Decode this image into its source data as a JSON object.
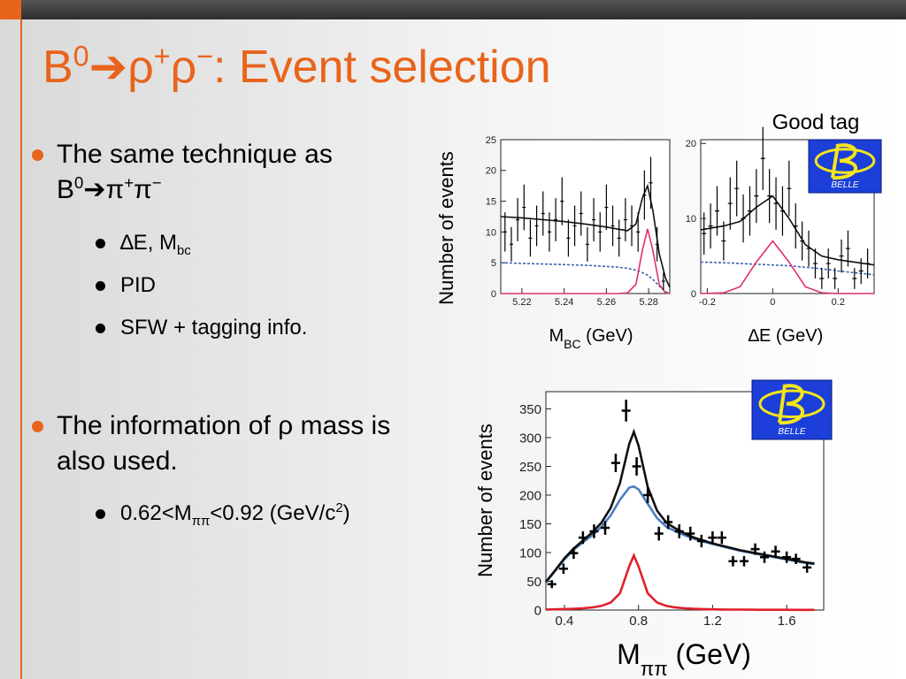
{
  "title": [
    {
      "text": "B"
    },
    {
      "text": "0",
      "sup": true
    },
    {
      "text": "➔ρ"
    },
    {
      "text": "+",
      "sup": true
    },
    {
      "text": "ρ"
    },
    {
      "text": "−",
      "sup": true
    },
    {
      "text": ": Event selection"
    }
  ],
  "bullets": [
    {
      "text": [
        {
          "text": "The same technique as B"
        },
        {
          "text": "0",
          "sup": true
        },
        {
          "text": "➔π"
        },
        {
          "text": "+",
          "sup": true
        },
        {
          "text": "π"
        },
        {
          "text": "−",
          "sup": true
        }
      ],
      "sub": [
        [
          {
            "text": "∆E, M"
          },
          {
            "text": "bc",
            "sub": true
          }
        ],
        [
          {
            "text": "PID"
          }
        ],
        [
          {
            "text": "SFW + tagging info."
          }
        ]
      ]
    },
    {
      "text": [
        {
          "text": "The information of ρ mass is also used."
        }
      ],
      "sub": [
        [
          {
            "text": "0.62<M"
          },
          {
            "text": "ππ",
            "sub": true
          },
          {
            "text": "<0.92 (GeV/c"
          },
          {
            "text": "2",
            "sup": true
          },
          {
            "text": ")"
          }
        ]
      ]
    }
  ],
  "plots": [
    {
      "type": "scatter",
      "ylabel": "Number of events",
      "xlabel": [
        {
          "text": "M"
        },
        {
          "text": "BC",
          "sub": true
        },
        {
          "text": " (GeV)"
        }
      ],
      "xlim": [
        5.21,
        5.29
      ],
      "xticks": [
        5.22,
        5.24,
        5.26,
        5.28
      ],
      "ylim": [
        0,
        25
      ],
      "yticks": [
        0,
        5,
        10,
        15,
        20,
        25
      ],
      "points": {
        "x": [
          5.212,
          5.215,
          5.218,
          5.221,
          5.224,
          5.227,
          5.23,
          5.233,
          5.236,
          5.239,
          5.242,
          5.245,
          5.248,
          5.251,
          5.254,
          5.257,
          5.26,
          5.263,
          5.266,
          5.269,
          5.272,
          5.275,
          5.278,
          5.281,
          5.284,
          5.287
        ],
        "y": [
          10,
          8,
          12,
          14,
          9,
          11,
          13,
          10,
          12,
          15,
          9,
          11,
          13,
          8,
          12,
          10,
          14,
          11,
          9,
          12,
          11,
          10,
          16,
          18,
          8,
          2
        ],
        "errors": [
          3.2,
          2.8,
          3.5,
          3.7,
          3.0,
          3.3,
          3.6,
          3.2,
          3.5,
          3.9,
          3.0,
          3.3,
          3.6,
          2.8,
          3.5,
          3.2,
          3.7,
          3.3,
          3.0,
          3.5,
          3.3,
          3.2,
          4.0,
          4.2,
          2.8,
          1.4
        ]
      },
      "curve_x": [
        5.21,
        5.22,
        5.23,
        5.24,
        5.25,
        5.26,
        5.265,
        5.27,
        5.274,
        5.277,
        5.2795,
        5.282,
        5.285,
        5.288,
        5.29
      ],
      "curves": [
        {
          "color": "#3a66b0",
          "dash": true,
          "values": [
            5.0,
            4.9,
            4.8,
            4.7,
            4.6,
            4.4,
            4.3,
            4.1,
            3.8,
            3.4,
            3.0,
            2.3,
            1.2,
            0.3,
            0
          ]
        },
        {
          "color": "#e0306a",
          "dash": false,
          "values": [
            0,
            0,
            0,
            0,
            0,
            0,
            0,
            0.1,
            1.5,
            7.0,
            10.5,
            7.0,
            1.5,
            0.1,
            0
          ]
        },
        {
          "color": "#111111",
          "dash": false,
          "values": [
            12.5,
            12.3,
            12.0,
            11.7,
            11.3,
            10.8,
            10.5,
            10.2,
            11.3,
            15.5,
            17.5,
            13.5,
            6.5,
            2.5,
            1.0
          ]
        }
      ]
    },
    {
      "type": "scatter",
      "xlabel": [
        {
          "text": "∆E (GeV)"
        }
      ],
      "annotation": "Good tag",
      "logo": "BELLE",
      "xlim": [
        -0.22,
        0.31
      ],
      "xticks": [
        -0.2,
        0,
        0.2
      ],
      "ylim": [
        0,
        20.5
      ],
      "yticks": [
        0,
        10,
        20
      ],
      "points": {
        "x": [
          -0.21,
          -0.19,
          -0.17,
          -0.15,
          -0.13,
          -0.11,
          -0.09,
          -0.07,
          -0.05,
          -0.03,
          -0.01,
          0.01,
          0.03,
          0.05,
          0.07,
          0.09,
          0.11,
          0.13,
          0.15,
          0.17,
          0.19,
          0.21,
          0.23,
          0.25,
          0.27,
          0.29
        ],
        "y": [
          8,
          9,
          11,
          7,
          12,
          14,
          10,
          11,
          13,
          18,
          13,
          12,
          11,
          14,
          9,
          7,
          6,
          4,
          2,
          4,
          2,
          5,
          6,
          2,
          3,
          4
        ],
        "errors": [
          2.8,
          3.0,
          3.3,
          2.6,
          3.5,
          3.7,
          3.2,
          3.3,
          3.6,
          4.2,
          3.6,
          3.5,
          3.3,
          3.7,
          3.0,
          2.6,
          2.4,
          2.0,
          1.4,
          2.0,
          1.4,
          2.2,
          2.4,
          1.4,
          1.7,
          2.0
        ]
      },
      "curve_x": [
        -0.22,
        -0.15,
        -0.1,
        -0.05,
        0,
        0.05,
        0.1,
        0.15,
        0.2,
        0.31
      ],
      "curves": [
        {
          "color": "#3a66b0",
          "dash": true,
          "values": [
            4.2,
            4.1,
            4.0,
            3.9,
            3.8,
            3.7,
            3.5,
            3.3,
            3.0,
            2.5
          ]
        },
        {
          "color": "#e0306a",
          "dash": false,
          "values": [
            0,
            0.1,
            0.9,
            4.2,
            7,
            4.2,
            0.9,
            0.1,
            0,
            0
          ]
        },
        {
          "color": "#111111",
          "dash": false,
          "values": [
            8.5,
            9.0,
            9.6,
            11.5,
            13.0,
            10.0,
            6.5,
            5.0,
            4.5,
            3.8
          ]
        }
      ]
    },
    {
      "type": "scatter",
      "ylabel": "Number of events",
      "xlabel": [
        {
          "text": "M"
        },
        {
          "text": "ππ",
          "sub": true
        },
        {
          "text": " (GeV)"
        }
      ],
      "logo": "BELLE",
      "xlim": [
        0.3,
        1.8
      ],
      "xticks": [
        0.4,
        0.8,
        1.2,
        1.6
      ],
      "ylim": [
        0,
        380
      ],
      "yticks": [
        0,
        50,
        100,
        150,
        200,
        250,
        300,
        350
      ],
      "points": {
        "x": [
          0.332,
          0.395,
          0.45,
          0.5,
          0.56,
          0.62,
          0.677,
          0.733,
          0.79,
          0.85,
          0.91,
          0.96,
          1.02,
          1.08,
          1.14,
          1.2,
          1.25,
          1.31,
          1.37,
          1.43,
          1.48,
          1.54,
          1.6,
          1.65,
          1.71
        ],
        "y": [
          45,
          72,
          99,
          126,
          137,
          143,
          256,
          347,
          250,
          200,
          133,
          153,
          137,
          133,
          120,
          126,
          126,
          85,
          85,
          106,
          92,
          102,
          92,
          89,
          74
        ],
        "errors": [
          7,
          9,
          10,
          11,
          12,
          12,
          16,
          19,
          16,
          14,
          12,
          12,
          12,
          12,
          11,
          11,
          11,
          9,
          9,
          10,
          10,
          10,
          10,
          9,
          9
        ]
      },
      "curve_x": [
        0.3,
        0.35,
        0.4,
        0.45,
        0.5,
        0.55,
        0.6,
        0.65,
        0.7,
        0.75,
        0.775,
        0.8,
        0.85,
        0.9,
        0.95,
        1.0,
        1.05,
        1.1,
        1.15,
        1.2,
        1.25,
        1.3,
        1.35,
        1.4,
        1.45,
        1.5,
        1.55,
        1.6,
        1.65,
        1.7,
        1.75
      ],
      "curves": [
        {
          "color": "#e0202a",
          "dash": false,
          "values": [
            1.0,
            1.3,
            1.7,
            2.2,
            3.0,
            4.5,
            7.2,
            13.1,
            29.2,
            76,
            95,
            76,
            29.2,
            13.1,
            7.2,
            4.5,
            3.0,
            2.2,
            1.7,
            1.3,
            1.0,
            0.8,
            0.7,
            0.6,
            0.5,
            0.5,
            0.4,
            0.4,
            0.3,
            0.3,
            0.3
          ]
        },
        {
          "color": "#4a7fc1",
          "dash": false,
          "values": [
            48,
            68,
            88,
            105,
            118,
            130,
            145,
            165,
            192,
            213,
            215,
            210,
            185,
            160,
            145,
            137,
            130,
            124,
            119,
            115,
            111,
            107,
            103,
            100,
            97,
            94,
            91,
            88,
            85,
            82,
            80
          ]
        },
        {
          "color": "#111111",
          "dash": false,
          "values": [
            49,
            69,
            90,
            107,
            121,
            135,
            152,
            178,
            221,
            289,
            310,
            286,
            214,
            173,
            152,
            142,
            133,
            126,
            121,
            116,
            112,
            108,
            104,
            101,
            98,
            95,
            92,
            89,
            86,
            83,
            81
          ]
        }
      ]
    }
  ]
}
